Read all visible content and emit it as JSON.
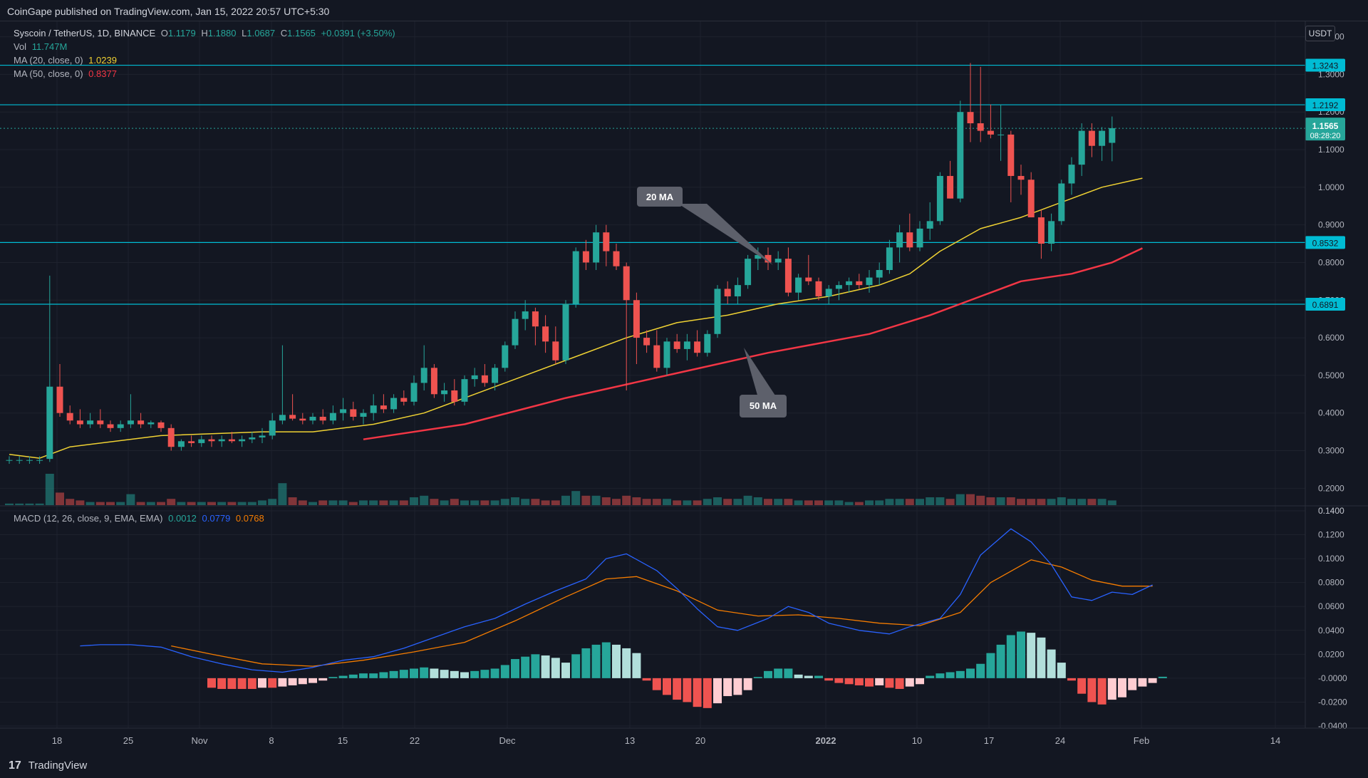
{
  "header": {
    "published": "CoinGape published on TradingView.com, Jan 15, 2022 20:57 UTC+5:30"
  },
  "legend": {
    "symbol": "Syscoin / TetherUS, 1D, BINANCE",
    "open_label": "O",
    "open": "1.1179",
    "high_label": "H",
    "high": "1.1880",
    "low_label": "L",
    "low": "1.0687",
    "close_label": "C",
    "close": "1.1565",
    "change": "+0.0391 (+3.50%)",
    "vol_label": "Vol",
    "vol": "11.747M",
    "ma20_label": "MA (20, close, 0)",
    "ma20": "1.0239",
    "ma50_label": "MA (50, close, 0)",
    "ma50": "0.8377",
    "macd_label": "MACD (12, 26, close, 9, EMA, EMA)",
    "macd_hist": "0.0012",
    "macd_line": "0.0779",
    "macd_signal": "0.0768"
  },
  "currency": "USDT",
  "footer": {
    "logo": "17",
    "brand": "TradingView"
  },
  "colors": {
    "up": "#26a69a",
    "down": "#ef5350",
    "up_light": "#b2dfdb",
    "down_light": "#ffcdd2",
    "ma20": "#f0d233",
    "ma50": "#f23645",
    "macd": "#2962ff",
    "signal": "#f57c00",
    "level": "#00bcd4",
    "bg": "#131722",
    "grid": "#1e222d"
  },
  "annotations": [
    {
      "label": "20 MA"
    },
    {
      "label": "50 MA"
    }
  ],
  "chart_data": {
    "type": "candlestick",
    "x_ticks": [
      "18",
      "25",
      "Nov",
      "8",
      "15",
      "22",
      "Dec",
      "13",
      "20",
      "2022",
      "10",
      "17",
      "24",
      "Feb",
      "14"
    ],
    "y_ticks": [
      "1.4000",
      "1.3000",
      "1.2000",
      "1.1000",
      "1.0000",
      "0.9000",
      "0.8000",
      "0.7000",
      "0.6000",
      "0.5000",
      "0.4000",
      "0.3000",
      "0.2000",
      "0.1400"
    ],
    "y_range": [
      0.14,
      1.42
    ],
    "price_levels": [
      {
        "label": "1.3243",
        "value": 1.3243
      },
      {
        "label": "1.2192",
        "value": 1.2192
      },
      {
        "label": "0.8532",
        "value": 0.8532
      },
      {
        "label": "0.6891",
        "value": 0.6891
      }
    ],
    "current_price": {
      "label": "1.1565",
      "value": 1.1565,
      "countdown": "08:28:20"
    },
    "candles": [
      [
        0.275,
        0.285,
        0.265,
        0.275,
        1
      ],
      [
        0.275,
        0.285,
        0.265,
        0.275,
        1
      ],
      [
        0.275,
        0.285,
        0.265,
        0.275,
        1
      ],
      [
        0.275,
        0.285,
        0.265,
        0.275,
        1
      ],
      [
        0.278,
        0.765,
        0.27,
        0.47,
        20
      ],
      [
        0.47,
        0.53,
        0.39,
        0.4,
        8
      ],
      [
        0.4,
        0.42,
        0.37,
        0.38,
        4
      ],
      [
        0.38,
        0.41,
        0.36,
        0.37,
        3
      ],
      [
        0.37,
        0.4,
        0.36,
        0.38,
        2
      ],
      [
        0.38,
        0.41,
        0.36,
        0.37,
        2
      ],
      [
        0.37,
        0.38,
        0.35,
        0.36,
        2
      ],
      [
        0.36,
        0.38,
        0.35,
        0.37,
        2
      ],
      [
        0.37,
        0.45,
        0.36,
        0.38,
        7
      ],
      [
        0.38,
        0.4,
        0.36,
        0.37,
        2
      ],
      [
        0.37,
        0.38,
        0.36,
        0.375,
        2
      ],
      [
        0.375,
        0.38,
        0.35,
        0.36,
        2
      ],
      [
        0.36,
        0.37,
        0.3,
        0.31,
        4
      ],
      [
        0.31,
        0.33,
        0.3,
        0.325,
        2
      ],
      [
        0.325,
        0.34,
        0.31,
        0.32,
        2
      ],
      [
        0.32,
        0.34,
        0.31,
        0.33,
        2
      ],
      [
        0.33,
        0.34,
        0.31,
        0.325,
        2
      ],
      [
        0.325,
        0.34,
        0.31,
        0.33,
        2
      ],
      [
        0.33,
        0.35,
        0.32,
        0.325,
        2
      ],
      [
        0.325,
        0.34,
        0.31,
        0.33,
        2
      ],
      [
        0.33,
        0.35,
        0.32,
        0.335,
        2
      ],
      [
        0.335,
        0.36,
        0.32,
        0.34,
        3
      ],
      [
        0.34,
        0.4,
        0.33,
        0.38,
        4
      ],
      [
        0.38,
        0.58,
        0.37,
        0.395,
        14
      ],
      [
        0.395,
        0.45,
        0.38,
        0.385,
        5
      ],
      [
        0.385,
        0.4,
        0.37,
        0.38,
        3
      ],
      [
        0.38,
        0.4,
        0.37,
        0.39,
        2
      ],
      [
        0.39,
        0.41,
        0.37,
        0.38,
        3
      ],
      [
        0.38,
        0.42,
        0.37,
        0.4,
        3
      ],
      [
        0.4,
        0.44,
        0.38,
        0.41,
        3
      ],
      [
        0.41,
        0.43,
        0.38,
        0.39,
        2
      ],
      [
        0.39,
        0.41,
        0.37,
        0.4,
        3
      ],
      [
        0.4,
        0.45,
        0.38,
        0.42,
        3
      ],
      [
        0.42,
        0.45,
        0.4,
        0.41,
        3
      ],
      [
        0.41,
        0.45,
        0.4,
        0.44,
        3
      ],
      [
        0.44,
        0.46,
        0.42,
        0.43,
        3
      ],
      [
        0.43,
        0.5,
        0.42,
        0.48,
        5
      ],
      [
        0.48,
        0.58,
        0.46,
        0.52,
        6
      ],
      [
        0.52,
        0.53,
        0.44,
        0.45,
        4
      ],
      [
        0.45,
        0.48,
        0.43,
        0.46,
        3
      ],
      [
        0.46,
        0.49,
        0.42,
        0.43,
        4
      ],
      [
        0.43,
        0.5,
        0.42,
        0.49,
        3
      ],
      [
        0.49,
        0.52,
        0.47,
        0.5,
        3
      ],
      [
        0.5,
        0.53,
        0.47,
        0.48,
        3
      ],
      [
        0.48,
        0.53,
        0.46,
        0.52,
        3
      ],
      [
        0.52,
        0.59,
        0.51,
        0.58,
        4
      ],
      [
        0.58,
        0.67,
        0.57,
        0.65,
        5
      ],
      [
        0.65,
        0.7,
        0.62,
        0.67,
        4
      ],
      [
        0.67,
        0.68,
        0.58,
        0.63,
        4
      ],
      [
        0.63,
        0.66,
        0.56,
        0.59,
        3
      ],
      [
        0.59,
        0.63,
        0.53,
        0.54,
        3
      ],
      [
        0.54,
        0.7,
        0.53,
        0.69,
        6
      ],
      [
        0.69,
        0.84,
        0.68,
        0.83,
        9
      ],
      [
        0.83,
        0.86,
        0.78,
        0.8,
        6
      ],
      [
        0.8,
        0.9,
        0.78,
        0.88,
        6
      ],
      [
        0.88,
        0.9,
        0.79,
        0.83,
        5
      ],
      [
        0.83,
        0.85,
        0.78,
        0.79,
        4
      ],
      [
        0.79,
        0.8,
        0.46,
        0.7,
        6
      ],
      [
        0.7,
        0.72,
        0.53,
        0.6,
        5
      ],
      [
        0.6,
        0.62,
        0.56,
        0.58,
        4
      ],
      [
        0.58,
        0.62,
        0.51,
        0.52,
        4
      ],
      [
        0.52,
        0.6,
        0.5,
        0.59,
        4
      ],
      [
        0.59,
        0.61,
        0.56,
        0.57,
        3
      ],
      [
        0.57,
        0.61,
        0.54,
        0.59,
        3
      ],
      [
        0.59,
        0.62,
        0.55,
        0.56,
        3
      ],
      [
        0.56,
        0.62,
        0.55,
        0.61,
        4
      ],
      [
        0.61,
        0.74,
        0.6,
        0.73,
        5
      ],
      [
        0.73,
        0.75,
        0.69,
        0.71,
        4
      ],
      [
        0.71,
        0.76,
        0.69,
        0.74,
        4
      ],
      [
        0.74,
        0.82,
        0.73,
        0.81,
        6
      ],
      [
        0.81,
        0.84,
        0.78,
        0.82,
        5
      ],
      [
        0.82,
        0.84,
        0.78,
        0.8,
        4
      ],
      [
        0.8,
        0.83,
        0.78,
        0.81,
        4
      ],
      [
        0.81,
        0.84,
        0.71,
        0.72,
        4
      ],
      [
        0.72,
        0.77,
        0.7,
        0.76,
        3
      ],
      [
        0.76,
        0.82,
        0.74,
        0.75,
        3
      ],
      [
        0.75,
        0.76,
        0.7,
        0.71,
        3
      ],
      [
        0.71,
        0.74,
        0.69,
        0.73,
        3
      ],
      [
        0.73,
        0.75,
        0.7,
        0.74,
        3
      ],
      [
        0.74,
        0.76,
        0.72,
        0.75,
        2
      ],
      [
        0.75,
        0.77,
        0.73,
        0.74,
        2
      ],
      [
        0.74,
        0.78,
        0.72,
        0.76,
        3
      ],
      [
        0.76,
        0.8,
        0.74,
        0.78,
        3
      ],
      [
        0.78,
        0.86,
        0.77,
        0.84,
        4
      ],
      [
        0.84,
        0.9,
        0.8,
        0.88,
        4
      ],
      [
        0.88,
        0.93,
        0.83,
        0.84,
        4
      ],
      [
        0.84,
        0.91,
        0.83,
        0.89,
        4
      ],
      [
        0.89,
        0.96,
        0.86,
        0.91,
        5
      ],
      [
        0.91,
        1.04,
        0.9,
        1.03,
        5
      ],
      [
        1.03,
        1.07,
        0.97,
        0.97,
        4
      ],
      [
        0.97,
        1.23,
        0.96,
        1.2,
        7
      ],
      [
        1.2,
        1.33,
        1.12,
        1.17,
        7
      ],
      [
        1.17,
        1.32,
        1.12,
        1.15,
        6
      ],
      [
        1.15,
        1.22,
        1.13,
        1.14,
        5
      ],
      [
        1.14,
        1.22,
        1.07,
        1.14,
        5
      ],
      [
        1.14,
        1.15,
        0.96,
        1.03,
        5
      ],
      [
        1.03,
        1.06,
        0.98,
        1.02,
        4
      ],
      [
        1.02,
        1.04,
        0.92,
        0.92,
        4
      ],
      [
        0.92,
        0.94,
        0.81,
        0.85,
        4
      ],
      [
        0.85,
        0.93,
        0.83,
        0.91,
        4
      ],
      [
        0.91,
        1.02,
        0.9,
        1.01,
        5
      ],
      [
        1.01,
        1.08,
        0.98,
        1.06,
        4
      ],
      [
        1.06,
        1.17,
        1.03,
        1.15,
        4
      ],
      [
        1.15,
        1.17,
        1.08,
        1.11,
        4
      ],
      [
        1.11,
        1.16,
        1.07,
        1.15,
        4
      ],
      [
        1.118,
        1.188,
        1.069,
        1.157,
        3
      ]
    ],
    "ma20": [
      [
        0,
        0.29
      ],
      [
        3,
        0.28
      ],
      [
        6,
        0.31
      ],
      [
        15,
        0.34
      ],
      [
        25,
        0.35
      ],
      [
        30,
        0.35
      ],
      [
        36,
        0.37
      ],
      [
        41,
        0.4
      ],
      [
        46,
        0.45
      ],
      [
        51,
        0.5
      ],
      [
        56,
        0.55
      ],
      [
        61,
        0.6
      ],
      [
        66,
        0.64
      ],
      [
        71,
        0.66
      ],
      [
        76,
        0.69
      ],
      [
        81,
        0.71
      ],
      [
        86,
        0.74
      ],
      [
        89,
        0.77
      ],
      [
        92,
        0.83
      ],
      [
        96,
        0.89
      ],
      [
        100,
        0.92
      ],
      [
        104,
        0.96
      ],
      [
        108,
        1.0
      ],
      [
        112,
        1.024
      ]
    ],
    "ma50": [
      [
        35,
        0.33
      ],
      [
        45,
        0.37
      ],
      [
        55,
        0.44
      ],
      [
        65,
        0.5
      ],
      [
        75,
        0.56
      ],
      [
        85,
        0.61
      ],
      [
        91,
        0.66
      ],
      [
        96,
        0.71
      ],
      [
        100,
        0.75
      ],
      [
        105,
        0.77
      ],
      [
        109,
        0.8
      ],
      [
        112,
        0.838
      ]
    ],
    "macd": {
      "y_ticks": [
        "0.1400",
        "0.1200",
        "0.1000",
        "0.0800",
        "0.0600",
        "0.0400",
        "0.0200",
        "-0.0000",
        "-0.0200",
        "-0.0400"
      ],
      "y_range": [
        -0.04,
        0.14
      ],
      "macd_line": [
        [
          7,
          0.027
        ],
        [
          9,
          0.028
        ],
        [
          12,
          0.028
        ],
        [
          15,
          0.026
        ],
        [
          18,
          0.018
        ],
        [
          21,
          0.012
        ],
        [
          24,
          0.007
        ],
        [
          27,
          0.005
        ],
        [
          30,
          0.009
        ],
        [
          33,
          0.015
        ],
        [
          36,
          0.018
        ],
        [
          39,
          0.025
        ],
        [
          42,
          0.034
        ],
        [
          45,
          0.043
        ],
        [
          48,
          0.05
        ],
        [
          51,
          0.062
        ],
        [
          54,
          0.073
        ],
        [
          57,
          0.083
        ],
        [
          59,
          0.1
        ],
        [
          61,
          0.104
        ],
        [
          64,
          0.09
        ],
        [
          66,
          0.075
        ],
        [
          68,
          0.058
        ],
        [
          70,
          0.043
        ],
        [
          72,
          0.04
        ],
        [
          75,
          0.05
        ],
        [
          77,
          0.06
        ],
        [
          79,
          0.055
        ],
        [
          81,
          0.046
        ],
        [
          84,
          0.04
        ],
        [
          87,
          0.037
        ],
        [
          89,
          0.043
        ],
        [
          92,
          0.05
        ],
        [
          94,
          0.07
        ],
        [
          96,
          0.103
        ],
        [
          99,
          0.125
        ],
        [
          101,
          0.114
        ],
        [
          103,
          0.095
        ],
        [
          105,
          0.068
        ],
        [
          107,
          0.065
        ],
        [
          109,
          0.072
        ],
        [
          111,
          0.07
        ],
        [
          113,
          0.078
        ]
      ],
      "signal_line": [
        [
          16,
          0.027
        ],
        [
          20,
          0.02
        ],
        [
          25,
          0.012
        ],
        [
          30,
          0.01
        ],
        [
          35,
          0.015
        ],
        [
          40,
          0.022
        ],
        [
          45,
          0.03
        ],
        [
          50,
          0.048
        ],
        [
          55,
          0.068
        ],
        [
          59,
          0.083
        ],
        [
          62,
          0.085
        ],
        [
          66,
          0.073
        ],
        [
          70,
          0.057
        ],
        [
          74,
          0.052
        ],
        [
          78,
          0.053
        ],
        [
          82,
          0.05
        ],
        [
          86,
          0.046
        ],
        [
          90,
          0.044
        ],
        [
          94,
          0.055
        ],
        [
          97,
          0.08
        ],
        [
          101,
          0.099
        ],
        [
          104,
          0.093
        ],
        [
          107,
          0.082
        ],
        [
          110,
          0.077
        ],
        [
          113,
          0.077
        ]
      ],
      "histogram": [
        -0.008,
        -0.009,
        -0.009,
        -0.009,
        -0.009,
        -0.008,
        -0.008,
        -0.007,
        -0.006,
        -0.005,
        -0.004,
        -0.002,
        0.001,
        0.002,
        0.003,
        0.004,
        0.004,
        0.005,
        0.006,
        0.007,
        0.008,
        0.009,
        0.008,
        0.007,
        0.006,
        0.005,
        0.006,
        0.007,
        0.008,
        0.011,
        0.016,
        0.018,
        0.02,
        0.019,
        0.017,
        0.013,
        0.02,
        0.025,
        0.028,
        0.03,
        0.028,
        0.025,
        0.021,
        -0.002,
        -0.01,
        -0.014,
        -0.018,
        -0.02,
        -0.024,
        -0.025,
        -0.021,
        -0.015,
        -0.014,
        -0.01,
        0.001,
        0.006,
        0.008,
        0.008,
        0.003,
        0.002,
        0.002,
        -0.002,
        -0.004,
        -0.005,
        -0.006,
        -0.007,
        -0.006,
        -0.008,
        -0.009,
        -0.007,
        -0.005,
        0.002,
        0.004,
        0.005,
        0.006,
        0.008,
        0.012,
        0.021,
        0.028,
        0.036,
        0.039,
        0.038,
        0.034,
        0.024,
        0.013,
        -0.002,
        -0.013,
        -0.02,
        -0.022,
        -0.018,
        -0.016,
        -0.01,
        -0.007,
        -0.004,
        0.0012
      ],
      "hist_start": 20
    }
  }
}
